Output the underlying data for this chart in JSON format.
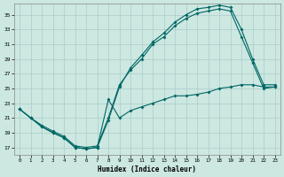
{
  "xlabel": "Humidex (Indice chaleur)",
  "bg_color": "#cce8e0",
  "grid_color": "#aacccc",
  "line_color": "#006666",
  "xlim": [
    -0.5,
    23.5
  ],
  "ylim": [
    16.0,
    36.5
  ],
  "yticks": [
    17,
    19,
    21,
    23,
    25,
    27,
    29,
    31,
    33,
    35
  ],
  "xticks": [
    0,
    1,
    2,
    3,
    4,
    5,
    6,
    7,
    8,
    9,
    10,
    11,
    12,
    13,
    14,
    15,
    16,
    17,
    18,
    19,
    20,
    21,
    22,
    23
  ],
  "line1_x": [
    0,
    1,
    2,
    3,
    4,
    5,
    6,
    7,
    8,
    9,
    10,
    11,
    12,
    13,
    14,
    15,
    16,
    17,
    18,
    19,
    20,
    21,
    22,
    23
  ],
  "line1_y": [
    22.2,
    21.0,
    20.0,
    19.2,
    18.5,
    17.2,
    17.0,
    17.2,
    21.0,
    25.5,
    27.5,
    29.0,
    31.0,
    32.0,
    33.5,
    34.5,
    35.2,
    35.5,
    35.8,
    35.5,
    32.0,
    28.5,
    25.0,
    25.2
  ],
  "line2_x": [
    0,
    1,
    2,
    3,
    4,
    5,
    6,
    7,
    8,
    9,
    10,
    11,
    12,
    13,
    14,
    15,
    16,
    17,
    18,
    19,
    20,
    21,
    22,
    23
  ],
  "line2_y": [
    22.2,
    21.0,
    19.8,
    19.0,
    18.3,
    17.0,
    16.8,
    17.0,
    20.7,
    25.2,
    27.8,
    29.5,
    31.3,
    32.5,
    34.0,
    35.0,
    35.8,
    36.0,
    36.3,
    36.0,
    33.0,
    29.0,
    25.5,
    25.5
  ],
  "line3_x": [
    0,
    1,
    2,
    3,
    4,
    5,
    6,
    7,
    8,
    9,
    10,
    11,
    12,
    13,
    14,
    15,
    16,
    17,
    18,
    19,
    20,
    21,
    22,
    23
  ],
  "line3_y": [
    22.2,
    21.0,
    19.8,
    19.0,
    18.3,
    17.0,
    16.8,
    17.0,
    23.5,
    21.0,
    22.0,
    22.5,
    23.0,
    23.5,
    24.0,
    24.0,
    24.2,
    24.5,
    25.0,
    25.2,
    25.5,
    25.5,
    25.2,
    25.2
  ]
}
